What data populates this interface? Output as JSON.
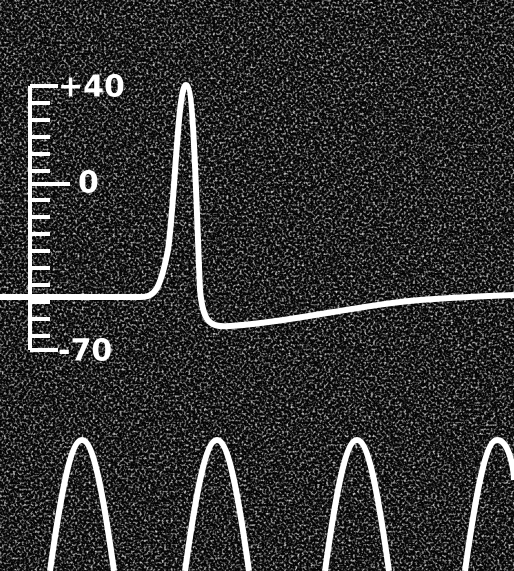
{
  "scale": {
    "labels": [
      "+40",
      "0",
      "-70"
    ]
  }
}
